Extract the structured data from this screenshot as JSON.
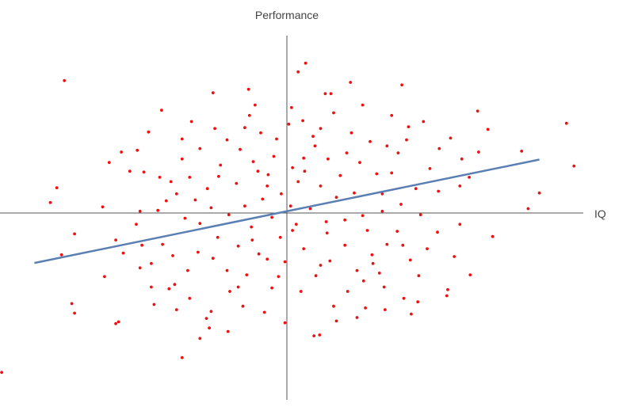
{
  "chart_data": {
    "type": "scatter",
    "title": "",
    "xlabel": "IQ",
    "ylabel": "Performance",
    "xlim": [
      -3,
      3
    ],
    "ylim": [
      -2,
      2
    ],
    "axes_style": "centered-crosshair",
    "grid": false,
    "legend": "none",
    "point_color": "#ee1111",
    "trendline_color": "#5b7fb3",
    "trendline": {
      "slope": 0.22,
      "intercept": 0.02,
      "x_start": -2.7,
      "x_end": 2.7
    },
    "series": [
      {
        "points": [
          [
            -2.38,
            1.52
          ],
          [
            0.2,
            1.72
          ],
          [
            0.12,
            1.62
          ],
          [
            0.68,
            1.5
          ],
          [
            1.23,
            1.47
          ],
          [
            2.99,
            1.03
          ],
          [
            3.07,
            0.54
          ],
          [
            2.51,
            0.71
          ],
          [
            2.7,
            0.23
          ],
          [
            2.58,
            0.05
          ],
          [
            -2.46,
            0.29
          ],
          [
            -2.53,
            0.12
          ],
          [
            -2.27,
            -0.24
          ],
          [
            -2.41,
            -0.48
          ],
          [
            -1.95,
            -0.73
          ],
          [
            -2.3,
            -1.04
          ],
          [
            -2.27,
            -1.15
          ],
          [
            -1.8,
            -1.25
          ],
          [
            -1.83,
            -1.27
          ],
          [
            -3.05,
            -1.83
          ],
          [
            -1.12,
            -1.66
          ],
          [
            -0.93,
            -1.44
          ],
          [
            0.29,
            -1.41
          ],
          [
            0.35,
            -1.4
          ],
          [
            1.33,
            -1.16
          ],
          [
            0.5,
            -1.07
          ],
          [
            0.92,
            -0.58
          ],
          [
            1.71,
            -0.95
          ],
          [
            1.72,
            -0.88
          ],
          [
            -0.79,
            1.38
          ],
          [
            -0.41,
            1.42
          ],
          [
            0.47,
            1.37
          ],
          [
            0.41,
            1.37
          ],
          [
            1.3,
            0.99
          ],
          [
            -1.34,
            1.18
          ],
          [
            -1.48,
            0.93
          ],
          [
            -1.77,
            0.7
          ],
          [
            -1.9,
            0.58
          ],
          [
            -1.6,
            0.72
          ],
          [
            -0.4,
            1.12
          ],
          [
            0.02,
            1.02
          ],
          [
            0.17,
            1.06
          ],
          [
            1.46,
            1.05
          ],
          [
            2.04,
            1.17
          ],
          [
            2.15,
            0.96
          ],
          [
            1.75,
            0.86
          ],
          [
            2.05,
            0.7
          ],
          [
            1.87,
            0.62
          ],
          [
            1.53,
            0.51
          ],
          [
            1.28,
            0.84
          ],
          [
            -1.53,
            0.47
          ],
          [
            -1.24,
            0.36
          ],
          [
            -1.04,
            0.41
          ],
          [
            -0.98,
            0.15
          ],
          [
            -1.29,
            0.14
          ],
          [
            -1.57,
            0.02
          ],
          [
            -1.83,
            -0.31
          ],
          [
            -1.55,
            -0.37
          ],
          [
            -1.45,
            -0.58
          ],
          [
            -1.57,
            -0.63
          ],
          [
            -1.26,
            -0.87
          ],
          [
            -1.18,
            -1.11
          ],
          [
            -0.86,
            -1.21
          ],
          [
            -0.81,
            -1.13
          ],
          [
            -0.47,
            -1.07
          ],
          [
            -1.04,
            -0.98
          ],
          [
            -1.2,
            -0.82
          ],
          [
            0.84,
            -1.09
          ],
          [
            1.05,
            -1.11
          ],
          [
            1.04,
            -0.85
          ],
          [
            1.41,
            -0.72
          ],
          [
            1.32,
            -0.54
          ],
          [
            1.5,
            -0.41
          ],
          [
            1.61,
            -0.22
          ],
          [
            1.43,
            -0.02
          ],
          [
            1.85,
            -0.13
          ],
          [
            1.62,
            0.25
          ],
          [
            1.22,
            0.1
          ],
          [
            -0.85,
            0.28
          ],
          [
            -0.71,
            0.55
          ],
          [
            -0.64,
            0.84
          ],
          [
            -0.5,
            0.73
          ],
          [
            -0.36,
            0.59
          ],
          [
            -0.2,
            0.44
          ],
          [
            -0.11,
            0.85
          ],
          [
            0.06,
            0.52
          ],
          [
            0.19,
            0.48
          ],
          [
            0.3,
            0.77
          ],
          [
            0.44,
            0.62
          ],
          [
            0.57,
            0.43
          ],
          [
            0.78,
            0.58
          ],
          [
            0.89,
            0.82
          ],
          [
            0.96,
            0.45
          ],
          [
            1.12,
            0.46
          ],
          [
            1.07,
            0.77
          ],
          [
            0.25,
            0.05
          ],
          [
            0.1,
            -0.13
          ],
          [
            -0.07,
            -0.28
          ],
          [
            -0.3,
            -0.47
          ],
          [
            -0.52,
            -0.38
          ],
          [
            -0.74,
            -0.28
          ],
          [
            -0.95,
            -0.45
          ],
          [
            -0.64,
            -0.66
          ],
          [
            -0.43,
            -0.71
          ],
          [
            -0.21,
            -0.53
          ],
          [
            -0.02,
            -0.56
          ],
          [
            0.18,
            -0.41
          ],
          [
            0.31,
            -0.72
          ],
          [
            0.46,
            -0.55
          ],
          [
            0.62,
            -0.37
          ],
          [
            0.75,
            -0.66
          ],
          [
            0.91,
            -0.48
          ],
          [
            1.07,
            -0.36
          ],
          [
            0.86,
            -0.2
          ],
          [
            0.62,
            -0.08
          ],
          [
            0.43,
            -0.23
          ],
          [
            0.72,
            0.23
          ],
          [
            0.53,
            0.18
          ],
          [
            0.36,
            0.31
          ],
          [
            0.12,
            0.36
          ],
          [
            -0.06,
            0.22
          ],
          [
            -0.26,
            0.16
          ],
          [
            -0.45,
            0.08
          ],
          [
            -0.62,
            -0.02
          ],
          [
            -0.81,
            0.06
          ],
          [
            -0.93,
            -0.12
          ],
          [
            -0.38,
            -0.16
          ],
          [
            -0.16,
            -0.05
          ],
          [
            0.04,
            0.08
          ],
          [
            -0.21,
            0.31
          ],
          [
            -0.54,
            0.34
          ],
          [
            -1.12,
            0.62
          ],
          [
            -0.77,
            0.97
          ],
          [
            -0.28,
            0.92
          ],
          [
            0.36,
            0.97
          ],
          [
            0.69,
            0.92
          ],
          [
            1.19,
            0.69
          ],
          [
            1.38,
            0.28
          ],
          [
            1.18,
            -0.21
          ],
          [
            0.99,
            -0.69
          ],
          [
            0.65,
            -0.9
          ],
          [
            0.15,
            -0.9
          ],
          [
            -0.16,
            -0.86
          ],
          [
            -0.61,
            -0.9
          ],
          [
            -1.06,
            -0.66
          ],
          [
            -1.33,
            -0.36
          ],
          [
            -1.09,
            -0.06
          ],
          [
            -1.36,
            0.41
          ],
          [
            -0.93,
            0.74
          ],
          [
            0.05,
            1.21
          ],
          [
            0.81,
            1.24
          ],
          [
            1.63,
            0.74
          ],
          [
            1.85,
            0.31
          ],
          [
            1.79,
            -0.5
          ],
          [
            1.25,
            -0.98
          ],
          [
            0.53,
            -1.24
          ],
          [
            -0.24,
            -1.14
          ],
          [
            -0.63,
            -1.36
          ],
          [
            -1.42,
            -1.05
          ],
          [
            -1.75,
            -0.46
          ],
          [
            -1.97,
            0.07
          ],
          [
            -1.68,
            0.48
          ],
          [
            -1.02,
            1.05
          ],
          [
            -0.34,
            1.24
          ],
          [
            0.5,
            1.15
          ],
          [
            1.12,
            1.12
          ],
          [
            1.95,
            0.41
          ],
          [
            2.2,
            -0.27
          ],
          [
            1.96,
            -0.71
          ],
          [
            1.4,
            -1.02
          ],
          [
            0.75,
            -1.2
          ],
          [
            -0.02,
            -1.26
          ],
          [
            -0.83,
            -1.32
          ],
          [
            -1.45,
            -0.85
          ],
          [
            -1.61,
            -0.13
          ],
          [
            -1.18,
            0.22
          ],
          [
            -0.73,
            0.42
          ],
          [
            -0.31,
            0.48
          ],
          [
            0.18,
            0.63
          ],
          [
            0.64,
            0.69
          ],
          [
            1.02,
            0.22
          ],
          [
            0.81,
            -0.03
          ],
          [
            0.42,
            -0.1
          ],
          [
            0.06,
            -0.2
          ],
          [
            -0.37,
            -0.31
          ],
          [
            -0.79,
            -0.52
          ],
          [
            -0.52,
            -0.85
          ],
          [
            -0.09,
            -0.73
          ],
          [
            0.36,
            -0.6
          ],
          [
            0.82,
            -0.78
          ],
          [
            1.24,
            -0.37
          ],
          [
            1.02,
            0.02
          ],
          [
            -0.14,
            0.65
          ],
          [
            0.28,
            0.88
          ],
          [
            -0.45,
            0.98
          ],
          [
            -1.12,
            0.85
          ],
          [
            -1.38,
            0.03
          ],
          [
            -1.22,
            -0.49
          ]
        ]
      }
    ]
  }
}
